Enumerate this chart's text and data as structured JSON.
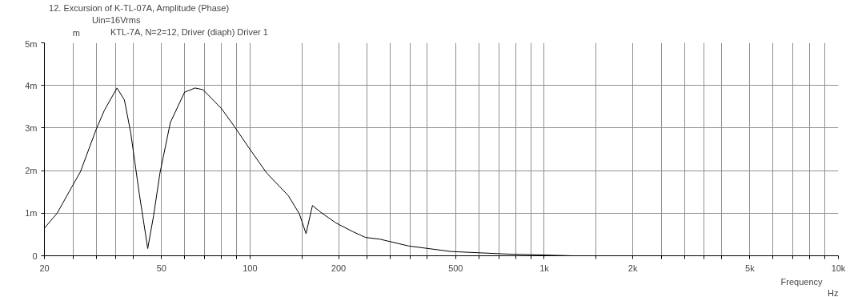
{
  "chart_data": {
    "type": "line",
    "title": "12. Excursion of K-TL-07A, Amplitude (Phase)",
    "subtitle": "Uin=16Vrms",
    "xlabel": "Frequency",
    "ylabel": "m",
    "annotations": [
      "Hz"
    ],
    "log": "x",
    "grid": true,
    "legend": "top left",
    "line_style": "solid",
    "marker": "none",
    "xlim": [
      20,
      10000
    ],
    "ylim": [
      0,
      5
    ],
    "xticks": [
      20,
      {
        "value": 25,
        "label": null
      },
      {
        "value": 30,
        "label": null
      },
      {
        "value": 35,
        "label": null
      },
      {
        "value": 40,
        "label": null
      },
      50,
      {
        "value": 60,
        "label": null
      },
      {
        "value": 70,
        "label": null
      },
      {
        "value": 80,
        "label": null
      },
      {
        "value": 90,
        "label": null
      },
      100,
      {
        "value": 150,
        "label": null
      },
      200,
      {
        "value": 250,
        "label": null
      },
      {
        "value": 300,
        "label": null
      },
      {
        "value": 350,
        "label": null
      },
      {
        "value": 400,
        "label": null
      },
      500,
      {
        "value": 600,
        "label": null
      },
      {
        "value": 700,
        "label": null
      },
      {
        "value": 800,
        "label": null
      },
      {
        "value": 900,
        "label": null
      },
      {
        "value": 1000,
        "label": "1k"
      },
      {
        "value": 1500,
        "label": null
      },
      {
        "value": 2000,
        "label": "2k"
      },
      {
        "value": 2500,
        "label": null
      },
      {
        "value": 3000,
        "label": null
      },
      {
        "value": 3500,
        "label": null
      },
      {
        "value": 4000,
        "label": null
      },
      {
        "value": 5000,
        "label": "5k"
      },
      {
        "value": 6000,
        "label": null
      },
      {
        "value": 7000,
        "label": null
      },
      {
        "value": 8000,
        "label": null
      },
      {
        "value": 9000,
        "label": null
      },
      {
        "value": 10000,
        "label": "10k"
      }
    ],
    "yticks": [
      0,
      {
        "value": 1,
        "label": "1m"
      },
      {
        "value": 2,
        "label": "2m"
      },
      {
        "value": 3,
        "label": "3m"
      },
      {
        "value": 4,
        "label": "4m"
      },
      {
        "value": 5,
        "label": "5m"
      }
    ],
    "series": [
      {
        "name": "KTL-7A, N=2=12, Driver (diaph) Driver 1",
        "color": "#000000",
        "x": [
          20,
          22.1,
          24.8,
          26.5,
          30,
          32,
          35.3,
          37.4,
          39.3,
          42,
          44.9,
          47,
          49.4,
          53.6,
          59.9,
          65,
          69.2,
          80.1,
          89,
          99,
          114,
          135,
          147,
          155,
          163,
          174,
          196,
          223,
          247,
          276,
          346,
          482,
          750,
          1250
        ],
        "values": [
          0.65,
          1.0,
          1.62,
          1.97,
          2.97,
          3.42,
          3.94,
          3.66,
          2.89,
          1.47,
          0.17,
          0.94,
          1.94,
          3.13,
          3.84,
          3.94,
          3.9,
          3.45,
          3.01,
          2.54,
          1.94,
          1.41,
          0.99,
          0.52,
          1.18,
          1.02,
          0.77,
          0.57,
          0.43,
          0.39,
          0.23,
          0.1,
          0.04,
          0.0
        ]
      }
    ]
  }
}
